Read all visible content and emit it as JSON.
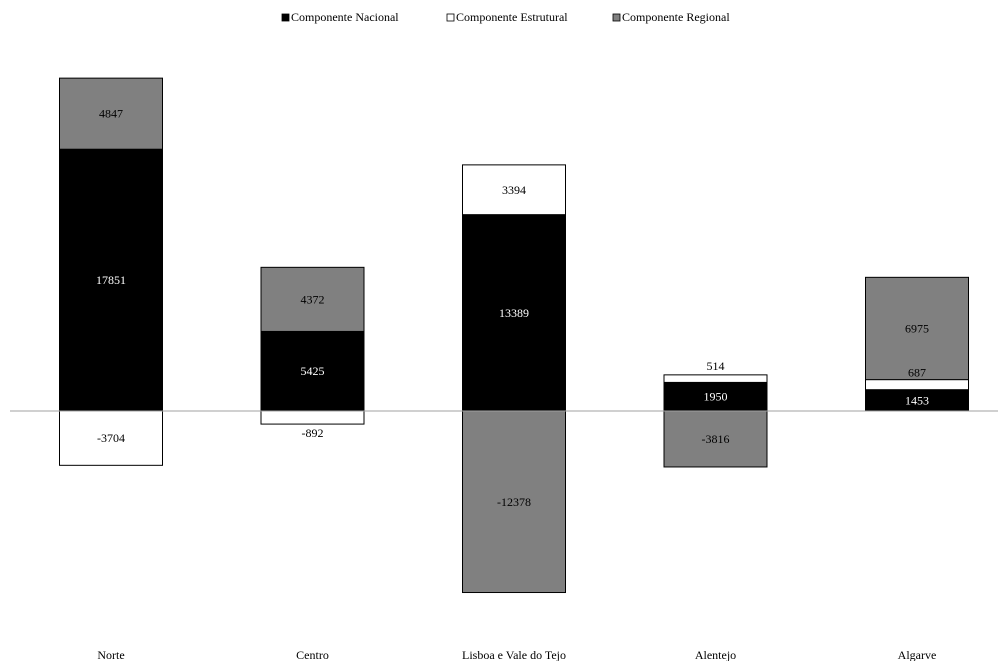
{
  "chart_data": {
    "type": "bar",
    "stacked": true,
    "categories": [
      "Norte",
      "Centro",
      "Lisboa e Vale do Tejo",
      "Alentejo",
      "Algarve"
    ],
    "series": [
      {
        "name": "Componente Nacional",
        "color": "#000000",
        "label_color": "#ffffff",
        "values": [
          17851,
          5425,
          13389,
          1950,
          1453
        ]
      },
      {
        "name": "Componente Estrutural",
        "color": "#ffffff",
        "label_color": "#000000",
        "values": [
          -3704,
          -892,
          3394,
          514,
          687
        ]
      },
      {
        "name": "Componente Regional",
        "color": "#808080",
        "label_color": "#000000",
        "values": [
          4847,
          4372,
          -12378,
          -3816,
          6975
        ]
      }
    ],
    "legend_position": "top-center",
    "grid": false,
    "ylim": [
      -12500,
      22700
    ]
  }
}
